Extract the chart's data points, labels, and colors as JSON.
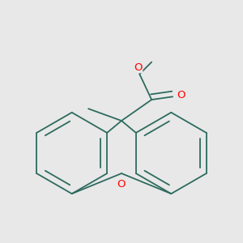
{
  "bg_color": "#e8e8e8",
  "bond_color": "#2d6b5e",
  "atom_colors": {
    "O": "#ff0000",
    "C": "#2d6b5e"
  },
  "bond_width": 1.3,
  "figsize": [
    3.0,
    3.0
  ],
  "dpi": 100
}
